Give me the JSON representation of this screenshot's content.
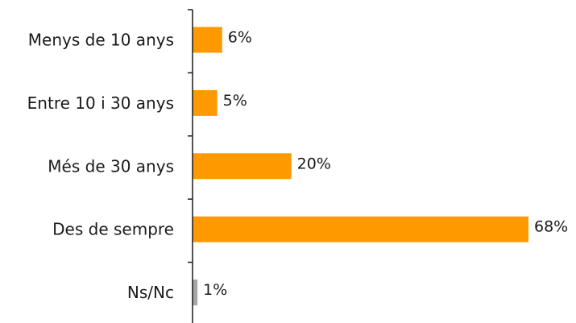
{
  "chart_data": {
    "type": "bar",
    "orientation": "horizontal",
    "categories": [
      "Menys de 10 anys",
      "Entre 10 i 30 anys",
      "Més de 30 anys",
      "Des de sempre",
      "Ns/Nc"
    ],
    "values": [
      6,
      5,
      20,
      68,
      1
    ],
    "value_labels": [
      "6%",
      "5%",
      "20%",
      "68%",
      "1%"
    ],
    "bar_colors": [
      "#FF9900",
      "#FF9900",
      "#FF9900",
      "#FF9900",
      "#A6A6A6"
    ],
    "title": "",
    "xlabel": "",
    "ylabel": "",
    "xlim": [
      0,
      68
    ],
    "grid": false,
    "legend": "none"
  }
}
